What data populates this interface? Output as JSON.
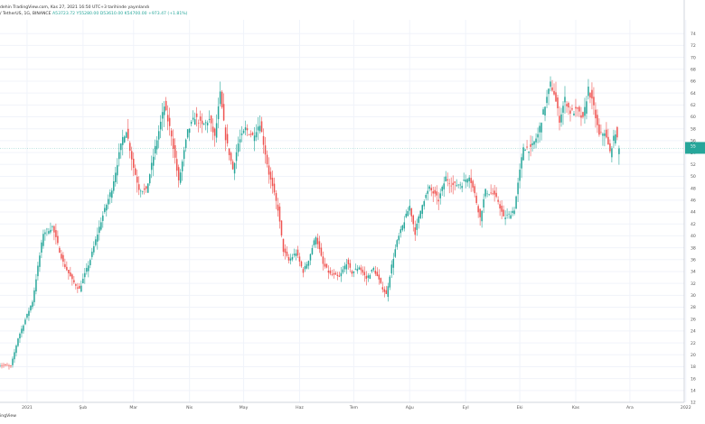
{
  "header": {
    "published": "dehin TradingView.com, Kas 27, 2021 16:50 UTC+3 tarihinde yayınlandı",
    "symbol": "/ TetherUS, 1G, BINANCE",
    "ohlc": "A53723.72  Y55280.00  D53610.00  K54700.00  +973.47 (+1.81%)"
  },
  "footer": {
    "brand": "ingView"
  },
  "colors": {
    "up": "#26a69a",
    "down": "#ef5350",
    "grid": "#f0f3fa",
    "axis_text": "#555555",
    "badge": "#26a69a"
  },
  "chart_data": {
    "type": "candlestick",
    "title": "",
    "xlabel": "",
    "ylabel": "",
    "ylim": [
      12000,
      76000
    ],
    "grid": true,
    "y_ticks": [
      12000,
      14000,
      16000,
      18000,
      20000,
      22000,
      24000,
      26000,
      28000,
      30000,
      32000,
      34000,
      36000,
      38000,
      40000,
      42000,
      44000,
      46000,
      48000,
      50000,
      52000,
      54000,
      56000,
      58000,
      60000,
      62000,
      64000,
      66000,
      68000,
      70000,
      72000,
      74000
    ],
    "x_ticks": [
      {
        "label": "2021",
        "index": 17
      },
      {
        "label": "Şub",
        "index": 48
      },
      {
        "label": "Mar",
        "index": 76
      },
      {
        "label": "Nis",
        "index": 107
      },
      {
        "label": "May",
        "index": 137
      },
      {
        "label": "Haz",
        "index": 168
      },
      {
        "label": "Tem",
        "index": 198
      },
      {
        "label": "Ağu",
        "index": 229
      },
      {
        "label": "Eyl",
        "index": 260
      },
      {
        "label": "Eki",
        "index": 290
      },
      {
        "label": "Kas",
        "index": 321
      },
      {
        "label": "Ara",
        "index": 351
      },
      {
        "label": "2022",
        "index": 382
      }
    ],
    "last_price": 54700,
    "anchors": [
      [
        0,
        18400
      ],
      [
        8,
        18000
      ],
      [
        12,
        22800
      ],
      [
        20,
        29000
      ],
      [
        26,
        40500
      ],
      [
        31,
        41500
      ],
      [
        37,
        35500
      ],
      [
        42,
        32500
      ],
      [
        46,
        31000
      ],
      [
        52,
        36000
      ],
      [
        58,
        42500
      ],
      [
        64,
        48000
      ],
      [
        70,
        56500
      ],
      [
        72,
        57800
      ],
      [
        76,
        51500
      ],
      [
        79,
        48000
      ],
      [
        83,
        47500
      ],
      [
        88,
        54800
      ],
      [
        93,
        61800
      ],
      [
        97,
        57000
      ],
      [
        101,
        49000
      ],
      [
        106,
        57500
      ],
      [
        110,
        60000
      ],
      [
        114,
        58500
      ],
      [
        118,
        59500
      ],
      [
        121,
        56500
      ],
      [
        124,
        63800
      ],
      [
        127,
        56500
      ],
      [
        131,
        51200
      ],
      [
        134,
        55500
      ],
      [
        138,
        58000
      ],
      [
        142,
        56800
      ],
      [
        146,
        59000
      ],
      [
        151,
        50500
      ],
      [
        156,
        44500
      ],
      [
        159,
        37500
      ],
      [
        162,
        35800
      ],
      [
        166,
        37200
      ],
      [
        170,
        34000
      ],
      [
        173,
        36000
      ],
      [
        177,
        40000
      ],
      [
        181,
        35200
      ],
      [
        185,
        33500
      ],
      [
        190,
        33000
      ],
      [
        194,
        35500
      ],
      [
        197,
        33800
      ],
      [
        201,
        34800
      ],
      [
        205,
        32800
      ],
      [
        209,
        34500
      ],
      [
        213,
        31800
      ],
      [
        216,
        30100
      ],
      [
        219,
        35000
      ],
      [
        222,
        39000
      ],
      [
        226,
        42500
      ],
      [
        229,
        45000
      ],
      [
        232,
        40500
      ],
      [
        236,
        45500
      ],
      [
        240,
        48000
      ],
      [
        245,
        46000
      ],
      [
        249,
        49800
      ],
      [
        253,
        48500
      ],
      [
        258,
        48800
      ],
      [
        262,
        50200
      ],
      [
        265,
        47000
      ],
      [
        268,
        43000
      ],
      [
        271,
        47500
      ],
      [
        275,
        47000
      ],
      [
        278,
        45800
      ],
      [
        281,
        43000
      ],
      [
        284,
        43500
      ],
      [
        287,
        44500
      ],
      [
        292,
        55000
      ],
      [
        296,
        54500
      ],
      [
        300,
        57000
      ],
      [
        304,
        62000
      ],
      [
        307,
        65500
      ],
      [
        309,
        64000
      ],
      [
        312,
        59500
      ],
      [
        315,
        63000
      ],
      [
        318,
        60800
      ],
      [
        322,
        61000
      ],
      [
        325,
        59500
      ],
      [
        328,
        64800
      ],
      [
        331,
        61500
      ],
      [
        334,
        56800
      ],
      [
        337,
        57500
      ],
      [
        340,
        54000
      ],
      [
        343,
        57500
      ],
      [
        345,
        54700
      ]
    ]
  }
}
